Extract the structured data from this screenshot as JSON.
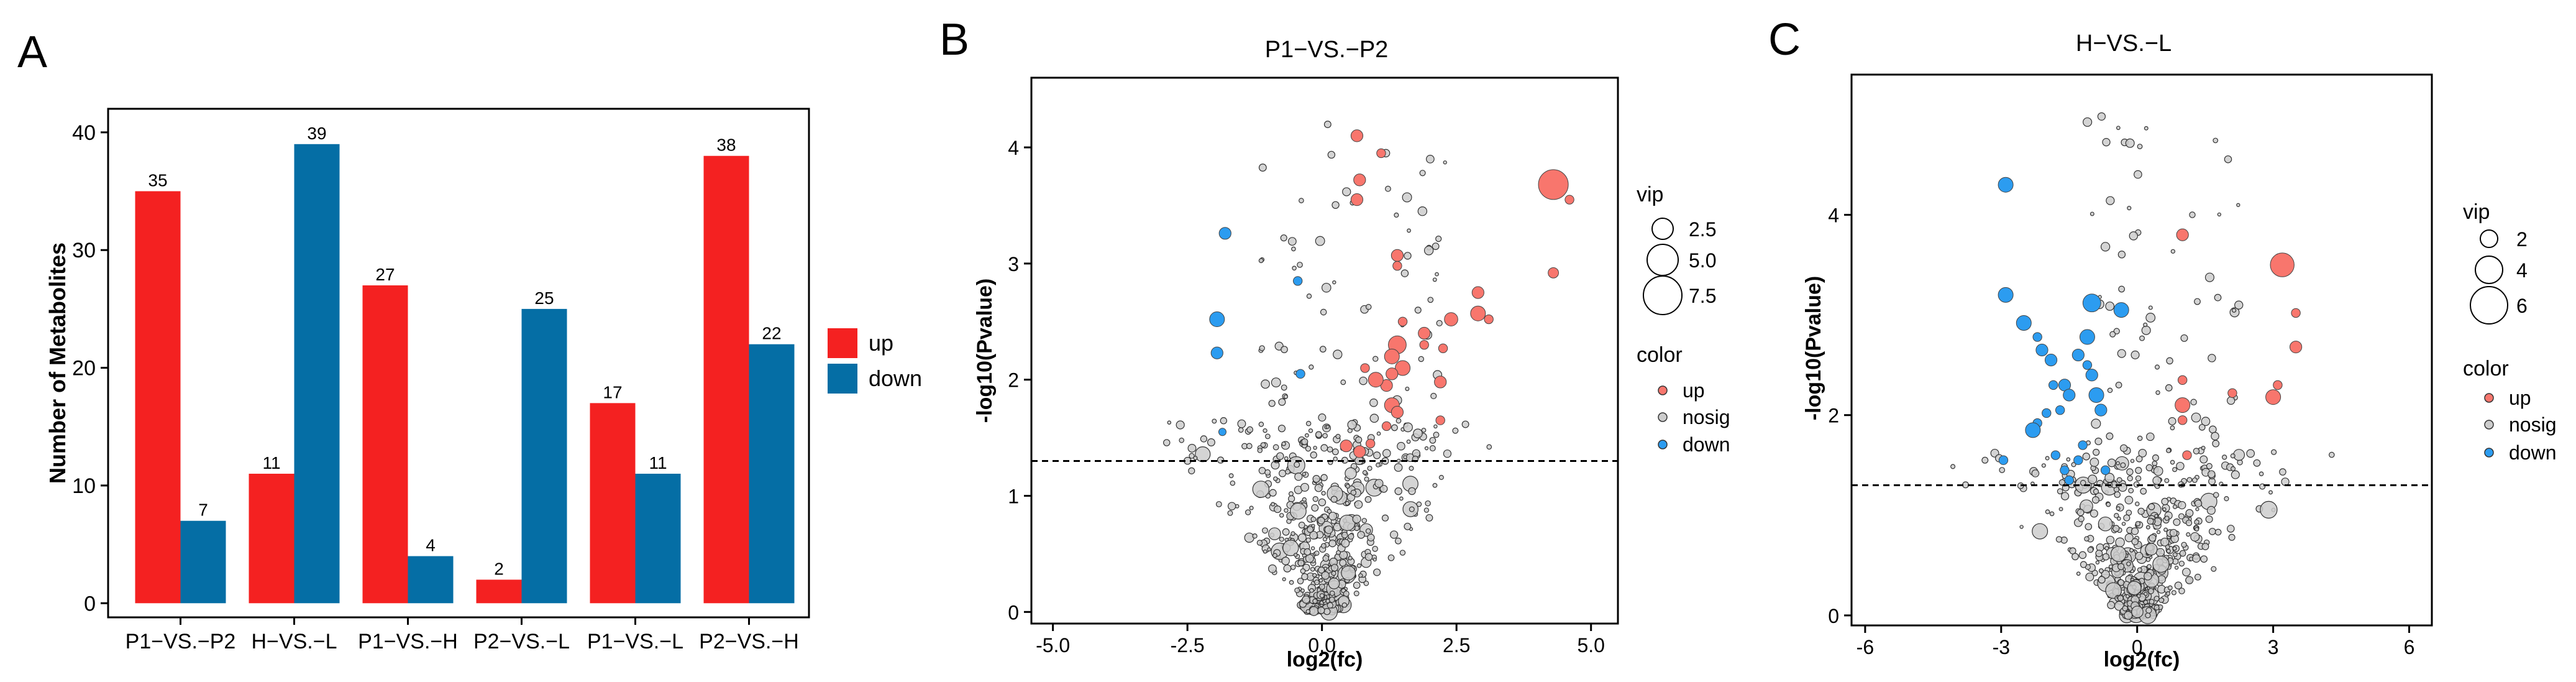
{
  "panels": {
    "a": {
      "letter": "A"
    },
    "b": {
      "letter": "B"
    },
    "c": {
      "letter": "C"
    }
  },
  "colors": {
    "up": "#f8766d",
    "down": "#2c9cf0",
    "nosig": "#cccccc",
    "bar_up": "#f42121",
    "bar_down": "#056ea5"
  },
  "chart_data": [
    {
      "type": "bar",
      "title": "",
      "categories": [
        "P1−VS.−P2",
        "H−VS.−L",
        "P1−VS.−H",
        "P2−VS.−L",
        "P1−VS.−L",
        "P2−VS.−H"
      ],
      "series": [
        {
          "name": "up",
          "values": [
            35,
            11,
            27,
            2,
            17,
            38
          ]
        },
        {
          "name": "down",
          "values": [
            7,
            39,
            4,
            25,
            11,
            22
          ]
        }
      ],
      "xlabel": "",
      "ylabel": "Number of Metabolites",
      "ylim": [
        -1.2,
        42
      ],
      "yticks": [
        0,
        10,
        20,
        30,
        40
      ],
      "legend": {
        "title": "",
        "entries": [
          "up",
          "down"
        ],
        "position": "right"
      }
    },
    {
      "type": "scatter",
      "title": "P1−VS.−P2",
      "xlabel": "log2(fc)",
      "ylabel": "-log10(Pvalue)",
      "xlim": [
        -5.4,
        5.5
      ],
      "ylim": [
        -0.1,
        4.6
      ],
      "xticks": [
        -5.0,
        -2.5,
        0.0,
        2.5,
        5.0
      ],
      "xtick_labels": [
        "-5.0",
        "-2.5",
        "0.0",
        "2.5",
        "5.0"
      ],
      "yticks": [
        0,
        1,
        2,
        3,
        4
      ],
      "threshold": 1.3,
      "vip_legend": {
        "title": "vip",
        "entries": [
          "2.5",
          "5.0",
          "7.5"
        ]
      },
      "color_legend": {
        "title": "color",
        "entries": [
          "up",
          "nosig",
          "down"
        ]
      },
      "up": [
        [
          4.3,
          3.68,
          10
        ],
        [
          4.6,
          3.55,
          3
        ],
        [
          4.3,
          2.92,
          3.5
        ],
        [
          2.9,
          2.75,
          4
        ],
        [
          3.1,
          2.52,
          3
        ],
        [
          2.9,
          2.57,
          5
        ],
        [
          2.4,
          2.52,
          4.5
        ],
        [
          2.25,
          2.27,
          3
        ],
        [
          2.2,
          1.65,
          3
        ],
        [
          0.65,
          4.1,
          4
        ],
        [
          1.1,
          3.95,
          3
        ],
        [
          0.7,
          3.72,
          4
        ],
        [
          0.65,
          3.55,
          4
        ],
        [
          1.4,
          3.07,
          4
        ],
        [
          1.4,
          2.98,
          3
        ],
        [
          1.5,
          2.5,
          3
        ],
        [
          1.9,
          2.4,
          4
        ],
        [
          1.4,
          2.3,
          6
        ],
        [
          1.3,
          2.2,
          5
        ],
        [
          1.5,
          2.1,
          5
        ],
        [
          1.3,
          2.05,
          4
        ],
        [
          1.2,
          1.95,
          4
        ],
        [
          1.0,
          2.0,
          5
        ],
        [
          1.3,
          1.78,
          5
        ],
        [
          1.4,
          1.72,
          4
        ],
        [
          1.2,
          1.6,
          3
        ],
        [
          1.9,
          2.3,
          3
        ],
        [
          2.2,
          1.98,
          4
        ],
        [
          0.9,
          1.45,
          3
        ],
        [
          0.7,
          1.38,
          4
        ],
        [
          0.45,
          1.43,
          4
        ],
        [
          0.8,
          2.1,
          3
        ]
      ],
      "down": [
        [
          -1.8,
          3.26,
          4
        ],
        [
          -1.95,
          2.52,
          5
        ],
        [
          -1.95,
          2.23,
          4
        ],
        [
          -0.45,
          2.85,
          3
        ],
        [
          -0.4,
          2.05,
          3
        ],
        [
          -1.85,
          1.55,
          2.5
        ]
      ],
      "nosig_count": 560
    },
    {
      "type": "scatter",
      "title": "H−VS.−L",
      "xlabel": "log2(fc)",
      "ylabel": "-log10(Pvalue)",
      "xlim": [
        -6.3,
        6.5
      ],
      "ylim": [
        -0.1,
        5.4
      ],
      "xticks": [
        -6,
        -3,
        0,
        3,
        6
      ],
      "xtick_labels": [
        "-6",
        "-3",
        "0",
        "3",
        "6"
      ],
      "yticks": [
        0,
        2,
        4
      ],
      "threshold": 1.3,
      "vip_legend": {
        "title": "vip",
        "entries": [
          "2",
          "4",
          "6"
        ]
      },
      "color_legend": {
        "title": "color",
        "entries": [
          "up",
          "nosig",
          "down"
        ]
      },
      "up": [
        [
          3.2,
          3.5,
          8
        ],
        [
          3.5,
          3.02,
          3
        ],
        [
          3.5,
          2.68,
          4
        ],
        [
          1.0,
          3.8,
          4
        ],
        [
          3.1,
          2.3,
          3
        ],
        [
          3.0,
          2.18,
          5
        ],
        [
          2.1,
          2.22,
          3
        ],
        [
          1.0,
          2.35,
          3
        ],
        [
          1.0,
          2.1,
          5
        ],
        [
          1.0,
          1.95,
          3
        ],
        [
          1.1,
          1.6,
          3
        ]
      ],
      "down": [
        [
          -2.9,
          4.3,
          5
        ],
        [
          -2.9,
          3.2,
          5
        ],
        [
          -2.5,
          2.92,
          5
        ],
        [
          -2.2,
          2.78,
          3
        ],
        [
          -2.1,
          2.65,
          4
        ],
        [
          -1.9,
          2.55,
          4
        ],
        [
          -1.3,
          2.6,
          4
        ],
        [
          -1.0,
          3.12,
          6
        ],
        [
          -0.35,
          3.05,
          5
        ],
        [
          -1.1,
          2.78,
          5
        ],
        [
          -1.1,
          2.5,
          3
        ],
        [
          -1.6,
          2.3,
          4
        ],
        [
          -1.5,
          2.2,
          4
        ],
        [
          -1.0,
          2.4,
          4
        ],
        [
          -0.9,
          2.2,
          5
        ],
        [
          -0.8,
          2.05,
          4
        ],
        [
          -1.85,
          2.3,
          3
        ],
        [
          -2.0,
          2.02,
          3
        ],
        [
          -2.2,
          1.92,
          3
        ],
        [
          -1.8,
          1.6,
          3
        ],
        [
          -1.6,
          1.45,
          3
        ],
        [
          -1.3,
          1.55,
          3
        ],
        [
          -2.3,
          1.85,
          5
        ],
        [
          -1.7,
          2.05,
          3
        ],
        [
          -2.95,
          1.55,
          3
        ],
        [
          -1.2,
          1.7,
          3
        ],
        [
          -0.7,
          1.45,
          3
        ],
        [
          -1.5,
          1.35,
          3
        ]
      ],
      "nosig_count": 560
    }
  ]
}
